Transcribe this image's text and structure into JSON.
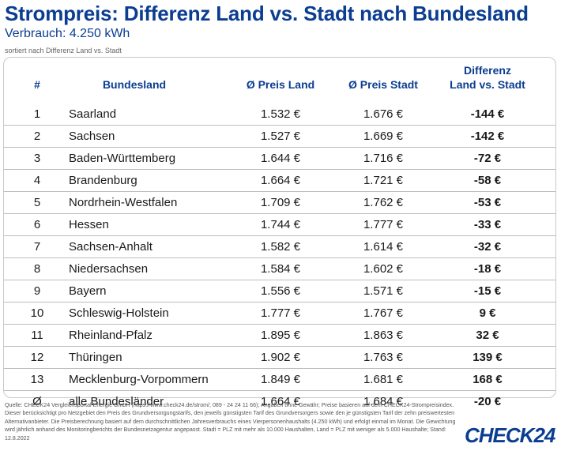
{
  "header": {
    "title": "Strompreis: Differenz Land vs. Stadt nach Bundesland",
    "subtitle": "Verbrauch: 4.250 kWh",
    "sort_note": "sortiert nach Differenz Land vs. Stadt"
  },
  "table": {
    "columns": {
      "rank": "#",
      "land": "Bundesland",
      "preis_land": "Ø Preis Land",
      "preis_stadt": "Ø Preis Stadt",
      "differenz": "Differenz\nLand vs. Stadt"
    },
    "rows": [
      {
        "rank": "1",
        "land": "Saarland",
        "preis_land": "1.532 €",
        "preis_stadt": "1.676 €",
        "differenz": "-144 €"
      },
      {
        "rank": "2",
        "land": "Sachsen",
        "preis_land": "1.527 €",
        "preis_stadt": "1.669 €",
        "differenz": "-142 €"
      },
      {
        "rank": "3",
        "land": "Baden-Württemberg",
        "preis_land": "1.644 €",
        "preis_stadt": "1.716 €",
        "differenz": "-72 €"
      },
      {
        "rank": "4",
        "land": "Brandenburg",
        "preis_land": "1.664 €",
        "preis_stadt": "1.721 €",
        "differenz": "-58 €"
      },
      {
        "rank": "5",
        "land": "Nordrhein-Westfalen",
        "preis_land": "1.709 €",
        "preis_stadt": "1.762 €",
        "differenz": "-53 €"
      },
      {
        "rank": "6",
        "land": "Hessen",
        "preis_land": "1.744 €",
        "preis_stadt": "1.777 €",
        "differenz": "-33 €"
      },
      {
        "rank": "7",
        "land": "Sachsen-Anhalt",
        "preis_land": "1.582 €",
        "preis_stadt": "1.614 €",
        "differenz": "-32 €"
      },
      {
        "rank": "8",
        "land": "Niedersachsen",
        "preis_land": "1.584 €",
        "preis_stadt": "1.602 €",
        "differenz": "-18 €"
      },
      {
        "rank": "9",
        "land": "Bayern",
        "preis_land": "1.556 €",
        "preis_stadt": "1.571 €",
        "differenz": "-15 €"
      },
      {
        "rank": "10",
        "land": "Schleswig-Holstein",
        "preis_land": "1.777 €",
        "preis_stadt": "1.767 €",
        "differenz": "9 €"
      },
      {
        "rank": "11",
        "land": "Rheinland-Pfalz",
        "preis_land": "1.895 €",
        "preis_stadt": "1.863 €",
        "differenz": "32 €"
      },
      {
        "rank": "12",
        "land": "Thüringen",
        "preis_land": "1.902 €",
        "preis_stadt": "1.763 €",
        "differenz": "139 €"
      },
      {
        "rank": "13",
        "land": "Mecklenburg-Vorpommern",
        "preis_land": "1.849 €",
        "preis_stadt": "1.681 €",
        "differenz": "168 €"
      },
      {
        "rank": "Ø",
        "land": "alle Bundesländer",
        "preis_land": "1.664 €",
        "preis_stadt": "1.684 €",
        "differenz": "-20 €"
      }
    ]
  },
  "footer": {
    "source": "Quelle: CHECK24 Vergleichsportal Energie GmbH (https://www.check24.de/strom/; 089 - 24 24 11 66); Angaben ohne Gewähr; Preise basieren auf dem CHECK24-Strompreisindex. Dieser berücksichtigt pro Netzgebiet den Preis des Grundversorgungstarifs, den jeweils günstigsten Tarif des Grundversorgers sowie den je günstigsten Tarif der zehn preiswertesten Alternativanbieter. Die Preisberechnung basiert auf dem durchschnittlichen Jahresverbrauchs eines Vierpersonenhaushalts (4.250 kWh) und erfolgt einmal im Monat. Die Gewichtung wird jährlich anhand des Monitoringberichts der Bundesnetzagentur angepasst. Stadt = PLZ mit mehr als 10.000 Haushalten, Land = PLZ mit weniger als 5.000 Haushalte; Stand: 12.8.2022",
    "logo": "CHECK24"
  },
  "colors": {
    "brand_blue": "#0b3d91",
    "divider": "#bdbdbd"
  }
}
